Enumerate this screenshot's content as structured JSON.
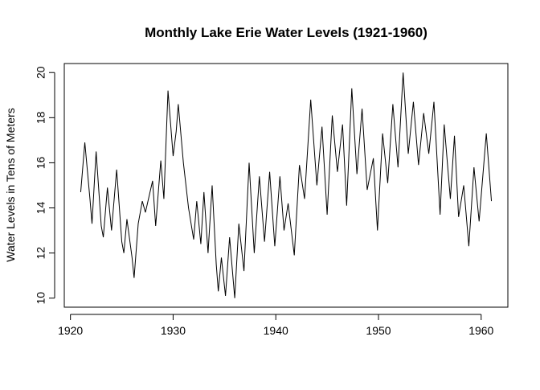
{
  "chart_data": {
    "type": "line",
    "title": "Monthly Lake Erie Water Levels (1921-1960)",
    "y_label": "Water Levels in Tens of Meters",
    "x": [
      1921.0,
      1921.4,
      1921.9,
      1922.1,
      1922.5,
      1923.0,
      1923.2,
      1923.6,
      1924.0,
      1924.5,
      1925.0,
      1925.2,
      1925.5,
      1926.0,
      1926.2,
      1926.6,
      1927.0,
      1927.3,
      1928.0,
      1928.3,
      1928.8,
      1929.1,
      1929.5,
      1930.0,
      1930.3,
      1930.5,
      1931.0,
      1931.5,
      1932.0,
      1932.3,
      1932.7,
      1933.0,
      1933.4,
      1933.8,
      1934.2,
      1934.4,
      1934.7,
      1935.1,
      1935.5,
      1936.0,
      1936.4,
      1936.9,
      1937.4,
      1937.9,
      1938.4,
      1938.9,
      1939.4,
      1939.9,
      1940.4,
      1940.8,
      1941.2,
      1941.8,
      1942.3,
      1942.8,
      1943.4,
      1944.0,
      1944.5,
      1945.0,
      1945.5,
      1946.0,
      1946.5,
      1946.9,
      1947.4,
      1947.9,
      1948.4,
      1948.9,
      1949.5,
      1949.9,
      1950.4,
      1950.9,
      1951.4,
      1951.9,
      1952.4,
      1952.9,
      1953.4,
      1953.9,
      1954.4,
      1954.9,
      1955.4,
      1956.0,
      1956.4,
      1957.0,
      1957.4,
      1957.8,
      1958.3,
      1958.8,
      1959.3,
      1959.8,
      1960.5,
      1961.0
    ],
    "series": [
      {
        "color": "#000000",
        "values": [
          14.7,
          16.9,
          14.4,
          13.3,
          16.5,
          13.2,
          12.7,
          14.9,
          13.0,
          15.7,
          12.5,
          12.0,
          13.5,
          11.8,
          10.9,
          13.3,
          14.3,
          13.8,
          15.2,
          13.2,
          16.1,
          14.4,
          19.2,
          16.3,
          17.4,
          18.6,
          16.0,
          14.0,
          12.6,
          14.3,
          12.4,
          14.7,
          12.0,
          15.0,
          11.5,
          10.3,
          11.8,
          10.1,
          12.7,
          10.0,
          13.3,
          11.2,
          16.0,
          12.0,
          15.4,
          12.5,
          15.6,
          12.3,
          15.4,
          13.0,
          14.2,
          11.9,
          15.9,
          14.4,
          18.8,
          15.0,
          17.6,
          13.7,
          18.1,
          15.6,
          17.7,
          14.1,
          19.3,
          15.5,
          18.4,
          14.8,
          16.2,
          13.0,
          17.3,
          15.1,
          18.6,
          15.8,
          20.0,
          16.4,
          18.7,
          15.9,
          18.2,
          16.4,
          18.7,
          13.7,
          17.7,
          14.4,
          17.2,
          13.6,
          15.0,
          12.3,
          15.8,
          13.4,
          17.3,
          14.3
        ]
      }
    ],
    "xlim": [
      1919.4,
      1962.6
    ],
    "ylim": [
      9.6,
      20.4
    ],
    "xticks": [
      1920,
      1930,
      1940,
      1950,
      1960
    ],
    "yticks": [
      10,
      12,
      14,
      16,
      18,
      20
    ],
    "grid": false
  }
}
